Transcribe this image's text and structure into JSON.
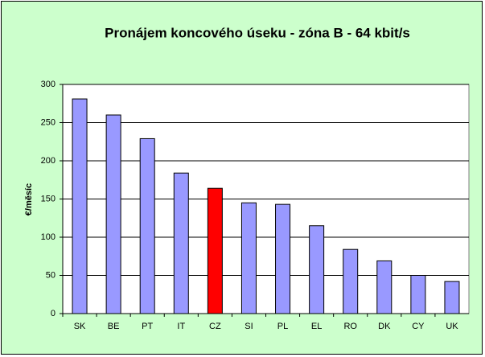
{
  "chart_data": {
    "type": "bar",
    "title": "Pronájem koncového úseku - zóna B - 64 kbit/s",
    "y_label": "€/měsíc",
    "categories": [
      "SK",
      "BE",
      "PT",
      "IT",
      "CZ",
      "SI",
      "PL",
      "EL",
      "RO",
      "DK",
      "CY",
      "UK"
    ],
    "values": [
      281,
      260,
      229,
      184,
      164,
      145,
      143,
      115,
      84,
      69,
      50,
      42
    ],
    "colors": [
      "#9999ff",
      "#9999ff",
      "#9999ff",
      "#9999ff",
      "#ff0000",
      "#9999ff",
      "#9999ff",
      "#9999ff",
      "#9999ff",
      "#9999ff",
      "#9999ff",
      "#9999ff"
    ],
    "ylim": [
      0,
      300
    ],
    "yticks": [
      0,
      50,
      100,
      150,
      200,
      250,
      300
    ],
    "grid": true
  }
}
